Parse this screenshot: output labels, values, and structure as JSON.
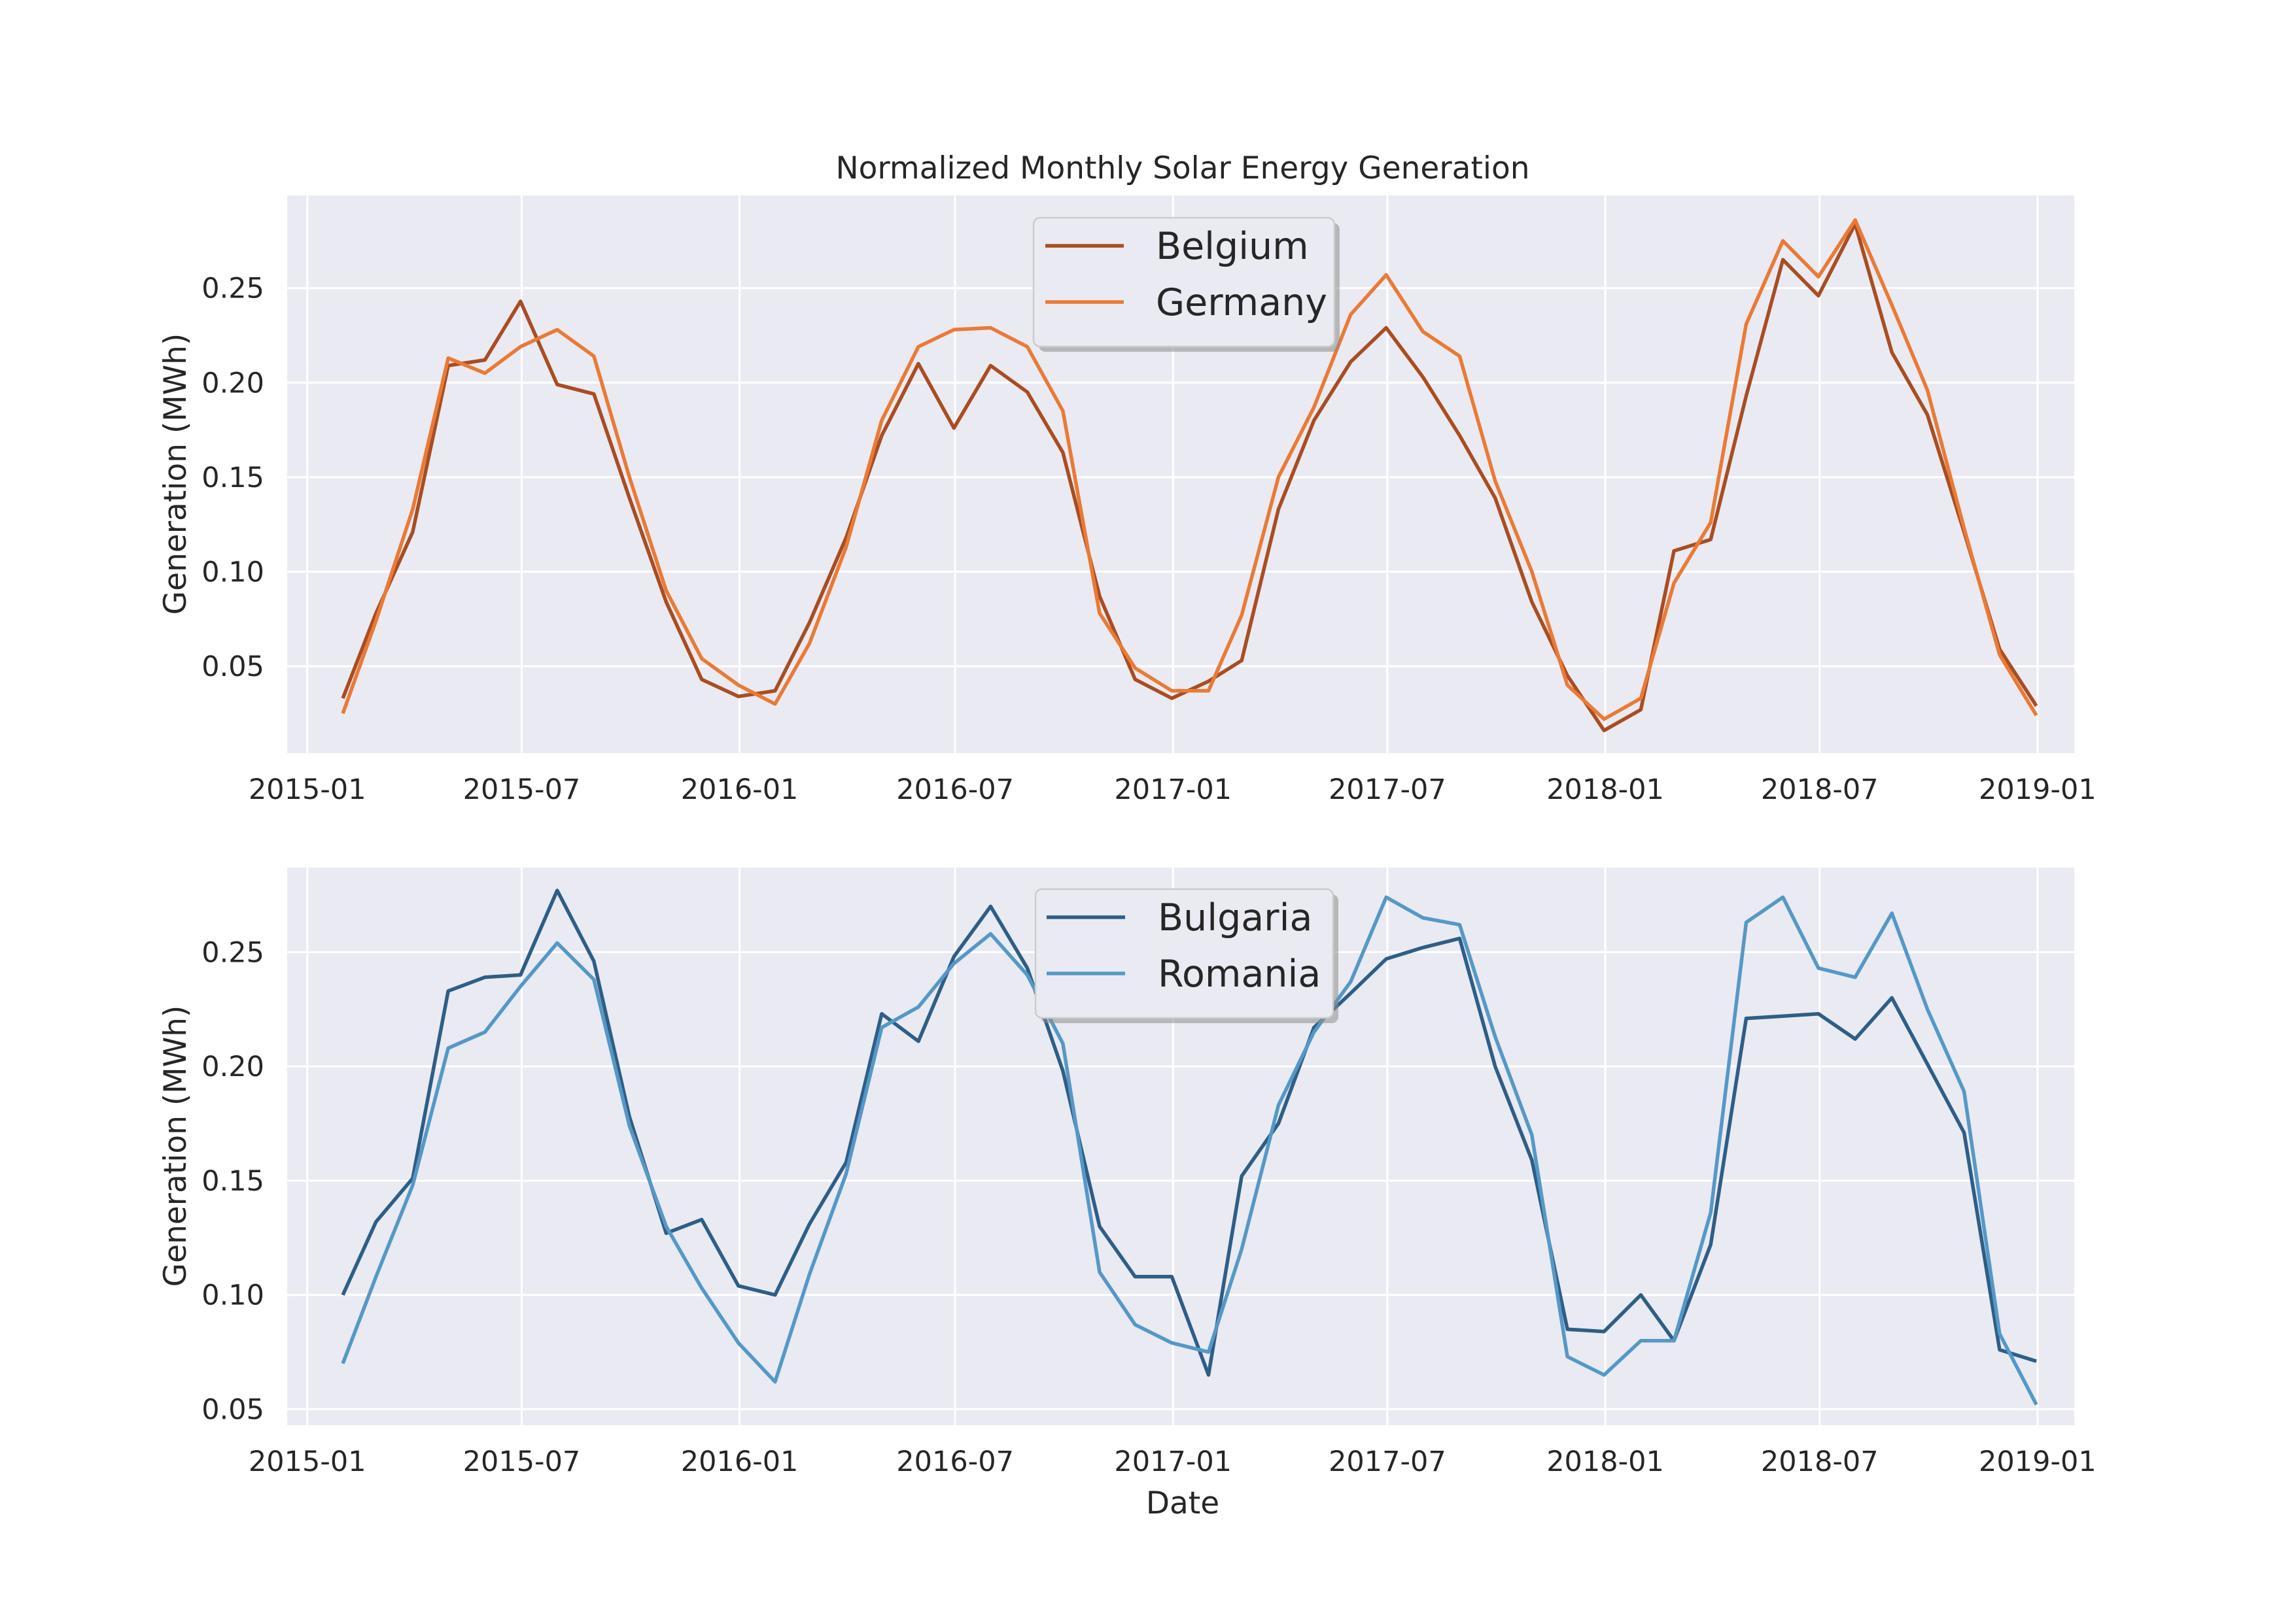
{
  "figure": {
    "title": "Normalized Monthly Solar Energy Generation"
  },
  "chart_data": [
    {
      "type": "line",
      "title": "Normalized Monthly Solar Energy Generation",
      "xlabel": "",
      "ylabel": "Generation (MWh)",
      "xlim": [
        "2014-12-15",
        "2019-02-01"
      ],
      "ylim": [
        0.004,
        0.299
      ],
      "x_ticks": [
        "2015-01",
        "2015-07",
        "2016-01",
        "2016-07",
        "2017-01",
        "2017-07",
        "2018-01",
        "2018-07",
        "2019-01"
      ],
      "y_ticks": [
        0.05,
        0.1,
        0.15,
        0.2,
        0.25
      ],
      "y_tick_labels": [
        "0.05",
        "0.10",
        "0.15",
        "0.20",
        "0.25"
      ],
      "grid": true,
      "legend": "top-center",
      "x": [
        "2015-01-31",
        "2015-02-28",
        "2015-03-31",
        "2015-04-30",
        "2015-05-31",
        "2015-06-30",
        "2015-07-31",
        "2015-08-31",
        "2015-09-30",
        "2015-10-31",
        "2015-11-30",
        "2015-12-31",
        "2016-01-31",
        "2016-02-29",
        "2016-03-31",
        "2016-04-30",
        "2016-05-31",
        "2016-06-30",
        "2016-07-31",
        "2016-08-31",
        "2016-09-30",
        "2016-10-31",
        "2016-11-30",
        "2016-12-31",
        "2017-01-31",
        "2017-02-28",
        "2017-03-31",
        "2017-04-30",
        "2017-05-31",
        "2017-06-30",
        "2017-07-31",
        "2017-08-31",
        "2017-09-30",
        "2017-10-31",
        "2017-11-30",
        "2017-12-31",
        "2018-01-31",
        "2018-02-28",
        "2018-03-31",
        "2018-04-30",
        "2018-05-31",
        "2018-06-30",
        "2018-07-31",
        "2018-08-31",
        "2018-09-30",
        "2018-10-31",
        "2018-11-30",
        "2018-12-31"
      ],
      "series": [
        {
          "name": "Belgium",
          "color": "#a94d22",
          "values": [
            0.033,
            0.078,
            0.121,
            0.209,
            0.212,
            0.243,
            0.199,
            0.194,
            0.139,
            0.084,
            0.043,
            0.034,
            0.037,
            0.073,
            0.118,
            0.172,
            0.21,
            0.176,
            0.209,
            0.195,
            0.163,
            0.087,
            0.043,
            0.033,
            0.042,
            0.053,
            0.133,
            0.18,
            0.211,
            0.229,
            0.203,
            0.172,
            0.139,
            0.084,
            0.045,
            0.016,
            0.027,
            0.111,
            0.117,
            0.193,
            0.265,
            0.246,
            0.284,
            0.216,
            0.183,
            0.121,
            0.059,
            0.029
          ]
        },
        {
          "name": "Germany",
          "color": "#ea7a35",
          "values": [
            0.025,
            0.074,
            0.133,
            0.213,
            0.205,
            0.219,
            0.228,
            0.214,
            0.15,
            0.09,
            0.054,
            0.04,
            0.03,
            0.062,
            0.113,
            0.18,
            0.219,
            0.228,
            0.229,
            0.219,
            0.185,
            0.078,
            0.049,
            0.037,
            0.037,
            0.077,
            0.15,
            0.187,
            0.236,
            0.257,
            0.227,
            0.214,
            0.148,
            0.1,
            0.04,
            0.022,
            0.033,
            0.094,
            0.126,
            0.231,
            0.275,
            0.256,
            0.286,
            0.241,
            0.196,
            0.123,
            0.056,
            0.024
          ]
        }
      ]
    },
    {
      "type": "line",
      "title": "",
      "xlabel": "Date",
      "ylabel": "Generation (MWh)",
      "xlim": [
        "2014-12-15",
        "2019-02-01"
      ],
      "ylim": [
        0.043,
        0.287
      ],
      "x_ticks": [
        "2015-01",
        "2015-07",
        "2016-01",
        "2016-07",
        "2017-01",
        "2017-07",
        "2018-01",
        "2018-07",
        "2019-01"
      ],
      "y_ticks": [
        0.05,
        0.1,
        0.15,
        0.2,
        0.25
      ],
      "y_tick_labels": [
        "0.05",
        "0.10",
        "0.15",
        "0.20",
        "0.25"
      ],
      "grid": true,
      "legend": "top-center",
      "x": [
        "2015-01-31",
        "2015-02-28",
        "2015-03-31",
        "2015-04-30",
        "2015-05-31",
        "2015-06-30",
        "2015-07-31",
        "2015-08-31",
        "2015-09-30",
        "2015-10-31",
        "2015-11-30",
        "2015-12-31",
        "2016-01-31",
        "2016-02-29",
        "2016-03-31",
        "2016-04-30",
        "2016-05-31",
        "2016-06-30",
        "2016-07-31",
        "2016-08-31",
        "2016-09-30",
        "2016-10-31",
        "2016-11-30",
        "2016-12-31",
        "2017-01-31",
        "2017-02-28",
        "2017-03-31",
        "2017-04-30",
        "2017-05-31",
        "2017-06-30",
        "2017-07-31",
        "2017-08-31",
        "2017-09-30",
        "2017-10-31",
        "2017-11-30",
        "2017-12-31",
        "2018-01-31",
        "2018-02-28",
        "2018-03-31",
        "2018-04-30",
        "2018-05-31",
        "2018-06-30",
        "2018-07-31",
        "2018-08-31",
        "2018-09-30",
        "2018-10-31",
        "2018-11-30",
        "2018-12-31"
      ],
      "series": [
        {
          "name": "Bulgaria",
          "color": "#2e5e86",
          "values": [
            0.1,
            0.132,
            0.151,
            0.233,
            0.239,
            0.24,
            0.277,
            0.246,
            0.178,
            0.127,
            0.133,
            0.104,
            0.1,
            0.131,
            0.158,
            0.223,
            0.211,
            0.248,
            0.27,
            0.243,
            0.198,
            0.13,
            0.108,
            0.108,
            0.065,
            0.152,
            0.175,
            0.217,
            0.232,
            0.247,
            0.252,
            0.256,
            0.2,
            0.159,
            0.085,
            0.084,
            0.1,
            0.08,
            0.122,
            0.221,
            0.222,
            0.223,
            0.212,
            0.23,
            0.201,
            0.171,
            0.076,
            0.071
          ]
        },
        {
          "name": "Romania",
          "color": "#5598c6",
          "values": [
            0.07,
            0.108,
            0.148,
            0.208,
            0.215,
            0.235,
            0.254,
            0.238,
            0.174,
            0.13,
            0.103,
            0.079,
            0.062,
            0.109,
            0.153,
            0.217,
            0.226,
            0.245,
            0.258,
            0.24,
            0.21,
            0.11,
            0.087,
            0.079,
            0.075,
            0.12,
            0.183,
            0.215,
            0.237,
            0.274,
            0.265,
            0.262,
            0.213,
            0.17,
            0.073,
            0.065,
            0.08,
            0.08,
            0.136,
            0.263,
            0.274,
            0.243,
            0.239,
            0.267,
            0.225,
            0.189,
            0.083,
            0.052
          ]
        }
      ]
    }
  ]
}
